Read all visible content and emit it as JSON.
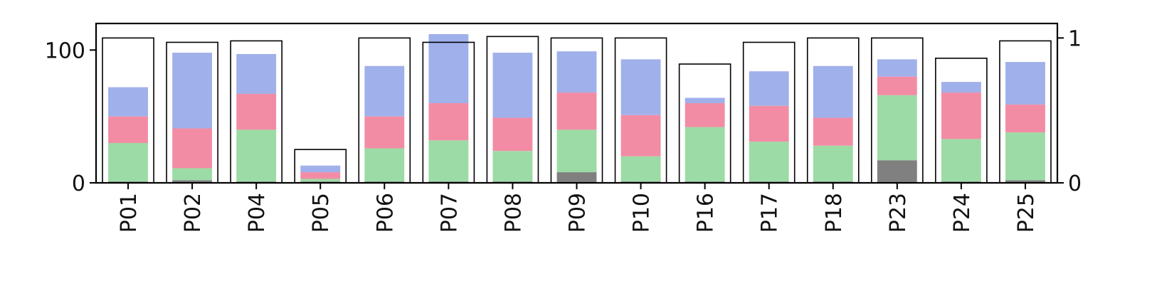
{
  "chart_data": {
    "type": "bar",
    "title": "",
    "xlabel": "",
    "ylabel": "",
    "ylim": [
      0,
      120
    ],
    "y2lim": [
      0,
      1.1
    ],
    "yticks": [
      0,
      100
    ],
    "y2ticks": [
      0,
      1
    ],
    "y_tick_labels": [
      "0",
      "100"
    ],
    "y2_tick_labels": [
      "0",
      "1"
    ],
    "legend": "none",
    "grid": false,
    "categories": [
      "P01",
      "P02",
      "P04",
      "P05",
      "P06",
      "P07",
      "P08",
      "P09",
      "P10",
      "P16",
      "P17",
      "P18",
      "P23",
      "P24",
      "P25"
    ],
    "stacked_series": [
      {
        "color": "#808080",
        "values": [
          1,
          2,
          1,
          1,
          1,
          1,
          1,
          8,
          1,
          1,
          1,
          1,
          17,
          1,
          2
        ]
      },
      {
        "color": "#9cdba5",
        "values": [
          29,
          9,
          39,
          2,
          25,
          31,
          23,
          32,
          19,
          41,
          30,
          27,
          49,
          32,
          36
        ]
      },
      {
        "color": "#f28ca4",
        "values": [
          20,
          30,
          27,
          5,
          24,
          28,
          25,
          28,
          31,
          18,
          27,
          21,
          14,
          35,
          21
        ]
      },
      {
        "color": "#a0b0ea",
        "values": [
          22,
          57,
          30,
          5,
          38,
          52,
          49,
          31,
          42,
          4,
          26,
          39,
          13,
          8,
          32
        ]
      }
    ],
    "outline_series": {
      "axis": "right",
      "color": "#000000",
      "values": [
        1.0,
        0.97,
        0.98,
        0.23,
        1.0,
        0.97,
        1.01,
        1.0,
        1.0,
        0.82,
        0.97,
        1.0,
        1.0,
        0.86,
        0.98
      ]
    }
  }
}
